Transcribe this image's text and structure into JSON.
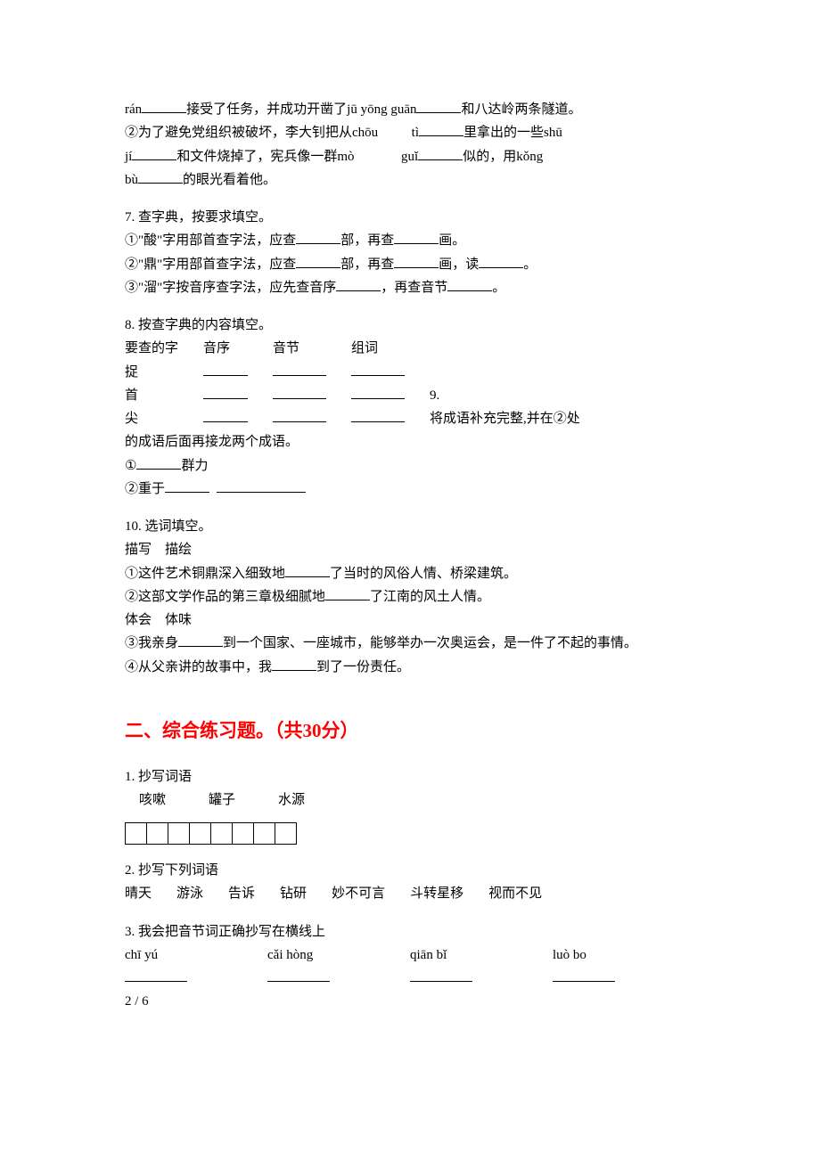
{
  "page": {
    "footer": "2 / 6"
  },
  "q6": {
    "line1_pre": " rán",
    "line1_a": "接受了任务，并成功开凿了jū  yōng  guān",
    "line1_b": "和八达岭两条隧道。",
    "line2_a": "②为了避免党组织被破坏，李大钊把从chōu",
    "line2_b": "tì",
    "line2_c": "里拿出的一些shū",
    "line3_a": "jí",
    "line3_b": "和文件烧掉了，宪兵像一群mò",
    "line3_c": "guǐ",
    "line3_d": "似的，用kǒng",
    "line4_a": "bù",
    "line4_b": "的眼光看着他。"
  },
  "q7": {
    "title": "7.  查字典，按要求填空。",
    "l1a": "①\"酸\"字用部首查字法，应查",
    "l1b": "部，再查",
    "l1c": "画。",
    "l2a": "②\"鼎\"字用部首查字法，应查",
    "l2b": "部，再查",
    "l2c": "画，读",
    "l2d": "。",
    "l3a": "③\"溜\"字按音序查字法，应先查音序",
    "l3b": "，再查音节",
    "l3c": "。"
  },
  "q8": {
    "title": "8.  按查字典的内容填空。",
    "h1": "要查的字",
    "h2": "音序",
    "h3": "音节",
    "h4": "组词",
    "r1": "捉",
    "r2": "首",
    "r3": "尖",
    "side": "9.",
    "side2": "将成语补充完整,并在②处",
    "tail": "的成语后面再接龙两个成语。",
    "i1a": "①",
    "i1b": "群力",
    "i2a": "②重于"
  },
  "q10": {
    "title": "10.  选词填空。",
    "pair1": "描写    描绘",
    "l1a": "①这件艺术铜鼎深入细致地",
    "l1b": "了当时的风俗人情、桥梁建筑。",
    "l2a": "②这部文学作品的第三章极细腻地",
    "l2b": "了江南的风土人情。",
    "pair2": "体会    体味",
    "l3a": "③我亲身",
    "l3b": "到一个国家、一座城市，能够举办一次奥运会，是一件了不起的事情。",
    "l4a": "④从父亲讲的故事中，我",
    "l4b": "到了一份责任。"
  },
  "section2": {
    "heading": "二、综合练习题。（共30分）"
  },
  "s1": {
    "title": "1.  抄写词语",
    "w1": "咳嗽",
    "w2": "罐子",
    "w3": "水源"
  },
  "s2": {
    "title": "2.  抄写下列词语",
    "w1": "晴天",
    "w2": "游泳",
    "w3": "告诉",
    "w4": "钻研",
    "w5": "妙不可言",
    "w6": "斗转星移",
    "w7": "视而不见"
  },
  "s3": {
    "title": "3.  我会把音节词正确抄写在横线上",
    "p1": "chī  yú",
    "p2": "cǎi  hòng",
    "p3": "qiān  bǐ",
    "p4": "luò  bo"
  }
}
